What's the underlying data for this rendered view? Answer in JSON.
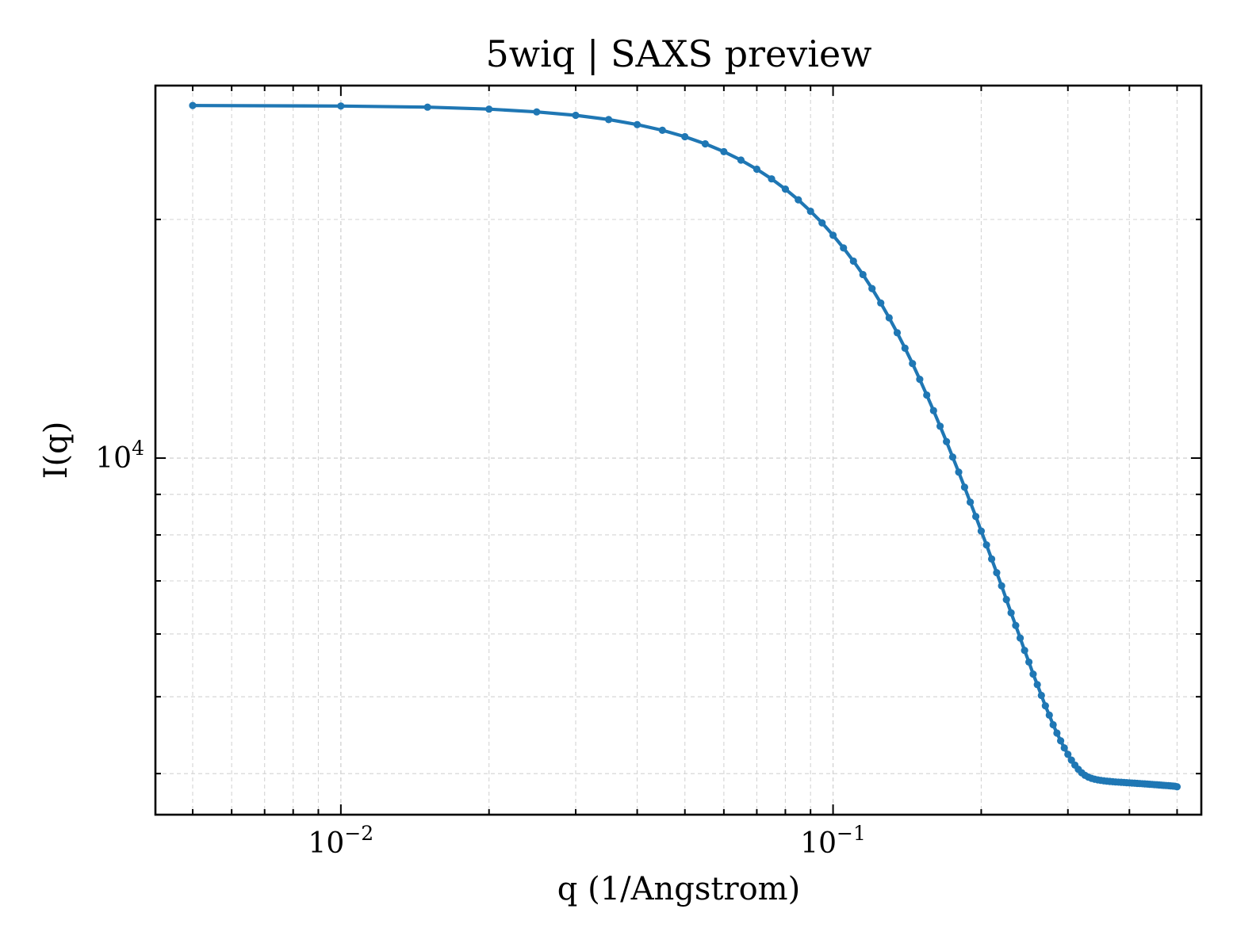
{
  "chart_data": {
    "type": "line",
    "title": "5wiq | SAXS preview",
    "xlabel": "q (1/Angstrom)",
    "ylabel": "I(q)",
    "xscale": "log",
    "yscale": "log",
    "xlim": [
      0.0042,
      0.56
    ],
    "ylim": [
      3550,
      29500
    ],
    "x_tick_labels": [
      {
        "value": 0.01,
        "base": "10",
        "exp": "−2"
      },
      {
        "value": 0.1,
        "base": "10",
        "exp": "−1"
      }
    ],
    "y_tick_labels": [
      {
        "value": 10000,
        "base": "10",
        "exp": "4"
      }
    ],
    "grid": true,
    "legend": "none",
    "color": "#1f77b4",
    "series": [
      {
        "x": [
          0.005,
          0.01,
          0.015,
          0.02,
          0.025,
          0.03,
          0.035,
          0.04,
          0.045,
          0.05,
          0.055,
          0.06,
          0.065,
          0.07,
          0.075,
          0.08,
          0.085,
          0.09,
          0.095,
          0.1,
          0.105,
          0.11,
          0.115,
          0.12,
          0.125,
          0.13,
          0.135,
          0.14,
          0.145,
          0.15,
          0.155,
          0.16,
          0.165,
          0.17,
          0.175,
          0.18,
          0.185,
          0.19,
          0.195,
          0.2,
          0.205,
          0.21,
          0.215,
          0.22,
          0.225,
          0.23,
          0.235,
          0.24,
          0.245,
          0.25,
          0.255,
          0.26,
          0.265,
          0.27,
          0.275,
          0.28,
          0.285,
          0.29,
          0.295,
          0.3,
          0.305,
          0.31,
          0.315,
          0.32,
          0.325,
          0.33,
          0.335,
          0.34,
          0.345,
          0.35,
          0.355,
          0.36,
          0.365,
          0.37,
          0.375,
          0.38,
          0.385,
          0.39,
          0.395,
          0.4,
          0.405,
          0.41,
          0.415,
          0.42,
          0.425,
          0.43,
          0.435,
          0.44,
          0.445,
          0.45,
          0.455,
          0.46,
          0.465,
          0.47,
          0.475,
          0.48,
          0.485,
          0.49,
          0.495,
          0.5
        ],
        "y": [
          27840,
          27800,
          27710,
          27550,
          27330,
          27060,
          26730,
          26340,
          25910,
          25430,
          24910,
          24350,
          23760,
          23140,
          22500,
          21840,
          21170,
          20480,
          19800,
          19100,
          18410,
          17720,
          17040,
          16360,
          15690,
          15030,
          14390,
          13760,
          13160,
          12570,
          12010,
          11480,
          10970,
          10490,
          10030,
          9600,
          9190,
          8800,
          8440,
          8090,
          7770,
          7460,
          7170,
          6900,
          6630,
          6380,
          6150,
          5930,
          5720,
          5530,
          5340,
          5180,
          5020,
          4870,
          4740,
          4610,
          4500,
          4400,
          4310,
          4230,
          4160,
          4100,
          4050,
          4010,
          3980,
          3960,
          3945,
          3935,
          3928,
          3922,
          3917,
          3913,
          3910,
          3907,
          3904,
          3902,
          3900,
          3898,
          3896,
          3894,
          3892,
          3890,
          3888,
          3886,
          3884,
          3882,
          3880,
          3878,
          3876,
          3874,
          3872,
          3870,
          3868,
          3866,
          3864,
          3862,
          3860,
          3858,
          3856,
          3850
        ]
      }
    ]
  }
}
